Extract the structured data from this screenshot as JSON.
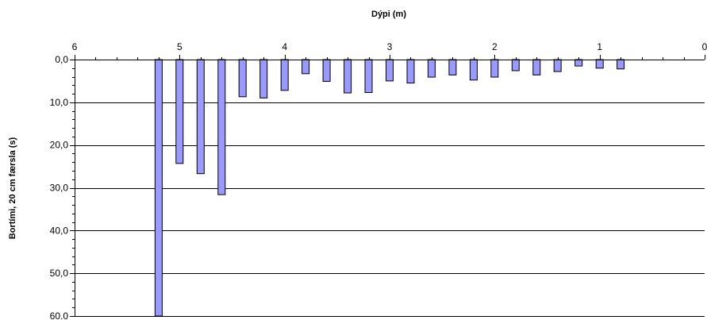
{
  "chart_data": {
    "type": "bar",
    "orientation": "vertical-down",
    "xlabel": "Dýpi (m)",
    "ylabel": "Bortími, 20 cm færsla (s)",
    "xlim": [
      6,
      0
    ],
    "ylim": [
      0,
      60
    ],
    "x_ticks": [
      "6",
      "5",
      "4",
      "3",
      "2",
      "1",
      "0"
    ],
    "y_ticks": [
      "0,0",
      "10,0",
      "20,0",
      "30,0",
      "40,0",
      "50,0",
      "60.0"
    ],
    "grid": "horizontal",
    "bar_color": "#9999ff",
    "x": [
      5.2,
      5.0,
      4.8,
      4.6,
      4.4,
      4.2,
      4.0,
      3.8,
      3.6,
      3.4,
      3.2,
      3.0,
      2.8,
      2.6,
      2.4,
      2.2,
      2.0,
      1.8,
      1.6,
      1.4,
      1.2,
      1.0,
      0.8
    ],
    "values": [
      60.0,
      24.3,
      26.7,
      31.6,
      8.7,
      9.0,
      7.2,
      3.3,
      5.1,
      7.8,
      7.7,
      5.0,
      5.5,
      4.1,
      3.6,
      4.8,
      4.1,
      2.6,
      3.6,
      2.8,
      1.5,
      2.0,
      2.2
    ]
  }
}
